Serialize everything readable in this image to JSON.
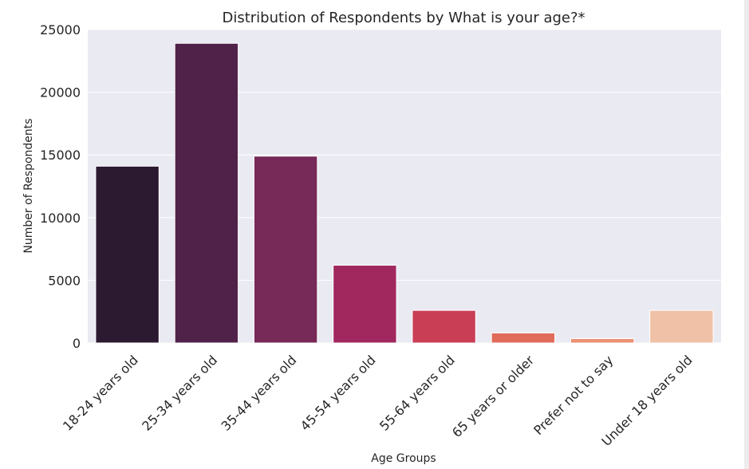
{
  "chart_data": {
    "type": "bar",
    "title": "Distribution of Respondents by What is your age?*",
    "xlabel": "Age Groups",
    "ylabel": "Number of Respondents",
    "categories": [
      "18-24 years old",
      "25-34 years old",
      "35-44 years old",
      "45-54 years old",
      "55-64 years old",
      "65 years or older",
      "Prefer not to say",
      "Under 18 years old"
    ],
    "values": [
      14100,
      23900,
      14900,
      6200,
      2600,
      800,
      350,
      2600
    ],
    "colors": [
      "#2c1a31",
      "#50224a",
      "#772958",
      "#a0285e",
      "#c93e55",
      "#e06b5a",
      "#ea9175",
      "#f0c1a6"
    ],
    "yticks": [
      0,
      5000,
      10000,
      15000,
      20000,
      25000
    ],
    "ylim": [
      0,
      25000
    ],
    "grid": true,
    "plot_background": "#eaeaf2"
  }
}
